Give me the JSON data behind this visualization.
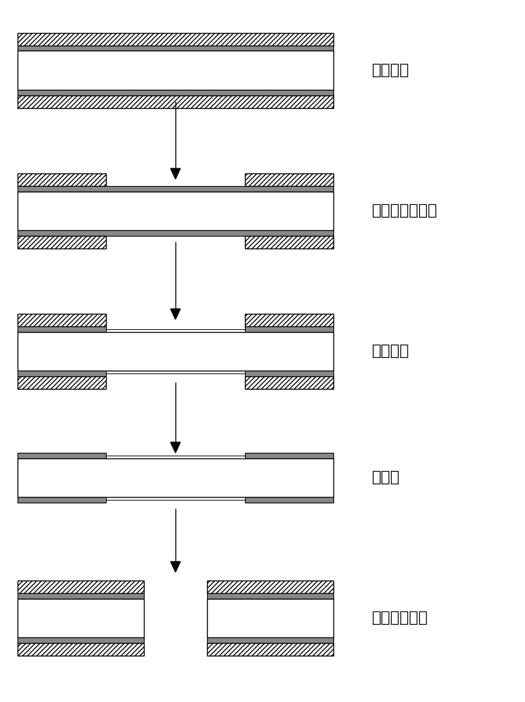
{
  "steps": [
    {
      "label": "覆盖干膜",
      "type": "full"
    },
    {
      "label": "干膜层曝光显影",
      "type": "exposed"
    },
    {
      "label": "铜窗蚀刻",
      "type": "etched"
    },
    {
      "label": "褪干膜",
      "type": "stripped"
    },
    {
      "label": "双面激光钻孔",
      "type": "drilled"
    }
  ],
  "board_color": "#ffffff",
  "hatch_color": "#000000",
  "copper_color": "#c0c0c0",
  "line_color": "#000000",
  "bg_color": "#ffffff",
  "text_color": "#000000",
  "label_fontsize": 16,
  "fig_width": 7.48,
  "fig_height": 10.0
}
